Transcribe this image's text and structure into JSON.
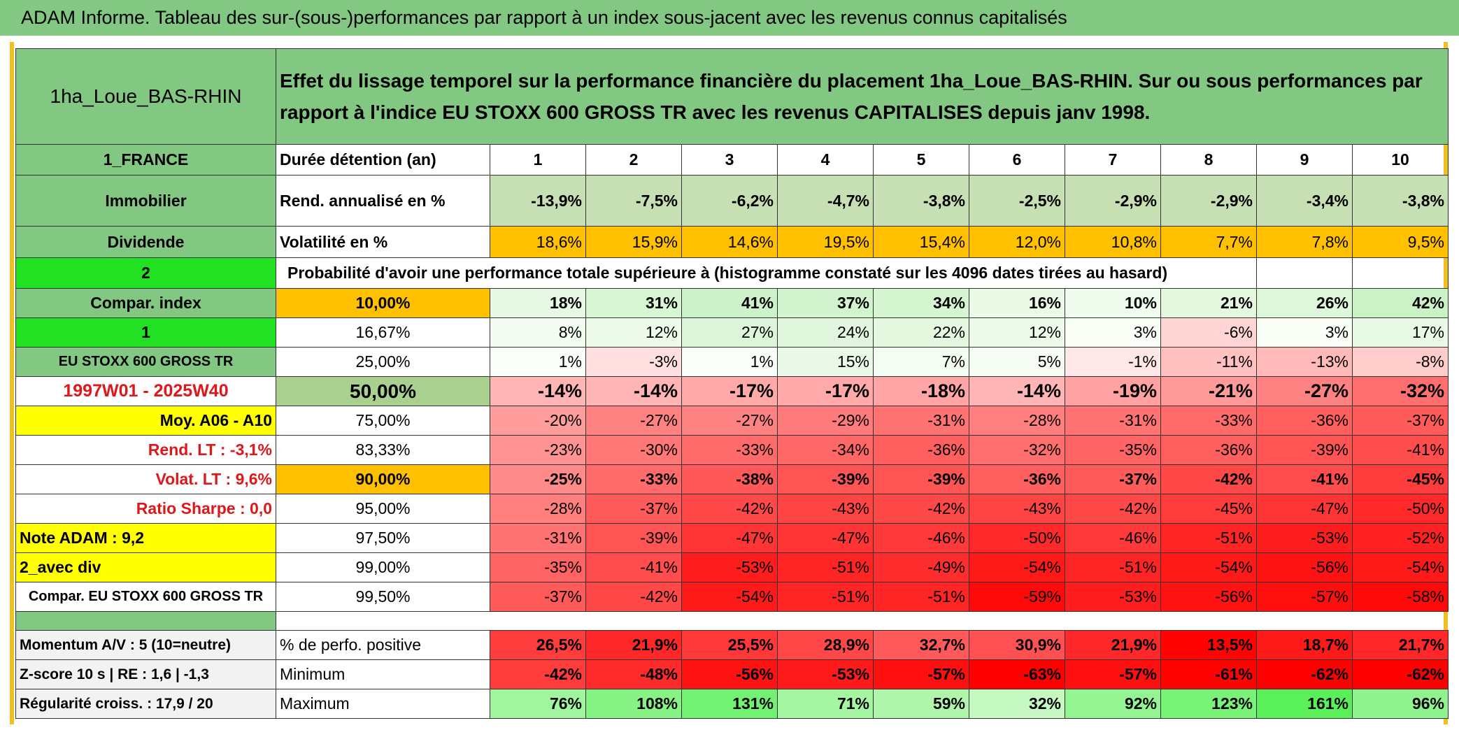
{
  "title": "ADAM Informe. Tableau des sur-(sous-)performances par rapport à un index sous-jacent avec les revenus connus capitalisés",
  "header": {
    "label": "1ha_Loue_BAS-RHIN",
    "description": "Effet du lissage temporel sur la performance financière du placement 1ha_Loue_BAS-RHIN. Sur ou sous performances par rapport à l'indice EU STOXX 600 GROSS TR avec les revenus CAPITALISES depuis janv 1998."
  },
  "rows": [
    {
      "side": "1_FRANCE",
      "label": "Durée détention (an)",
      "cells": [
        "1",
        "2",
        "3",
        "4",
        "5",
        "6",
        "7",
        "8",
        "9",
        "10"
      ]
    },
    {
      "side": "Immobilier",
      "label": "Rend. annualisé en %",
      "cells": [
        "-13,9%",
        "-7,5%",
        "-6,2%",
        "-4,7%",
        "-3,8%",
        "-2,5%",
        "-2,9%",
        "-2,9%",
        "-3,4%",
        "-3,8%"
      ]
    },
    {
      "side": "Dividende",
      "label": "Volatilité en %",
      "cells": [
        "18,6%",
        "15,9%",
        "14,6%",
        "19,5%",
        "15,4%",
        "12,0%",
        "10,8%",
        "7,7%",
        "7,8%",
        "9,5%"
      ]
    },
    {
      "side": "2",
      "label": "Probabilité d'avoir une performance totale supérieure à (histogramme constaté sur les 4096 dates tirées au hasard)",
      "cells": []
    },
    {
      "side": "Compar. index",
      "label": "10,00%",
      "cells": [
        "18%",
        "31%",
        "41%",
        "37%",
        "34%",
        "16%",
        "10%",
        "21%",
        "26%",
        "42%"
      ]
    },
    {
      "side": "1",
      "label": "16,67%",
      "cells": [
        "8%",
        "12%",
        "27%",
        "24%",
        "22%",
        "12%",
        "3%",
        "-6%",
        "3%",
        "17%"
      ]
    },
    {
      "side": "EU STOXX 600 GROSS TR",
      "label": "25,00%",
      "cells": [
        "1%",
        "-3%",
        "1%",
        "15%",
        "7%",
        "5%",
        "-1%",
        "-11%",
        "-13%",
        "-8%"
      ]
    },
    {
      "side": "1997W01 - 2025W40",
      "label": "50,00%",
      "cells": [
        "-14%",
        "-14%",
        "-17%",
        "-17%",
        "-18%",
        "-14%",
        "-19%",
        "-21%",
        "-27%",
        "-32%"
      ]
    },
    {
      "side": "Moy. A06 - A10",
      "label": "75,00%",
      "cells": [
        "-20%",
        "-27%",
        "-27%",
        "-29%",
        "-31%",
        "-28%",
        "-31%",
        "-33%",
        "-36%",
        "-37%"
      ]
    },
    {
      "side": "Rend. LT :   -3,1%",
      "label": "83,33%",
      "cells": [
        "-23%",
        "-30%",
        "-33%",
        "-34%",
        "-36%",
        "-32%",
        "-35%",
        "-36%",
        "-39%",
        "-41%"
      ]
    },
    {
      "side": "Volat. LT :   9,6%",
      "label": "90,00%",
      "cells": [
        "-25%",
        "-33%",
        "-38%",
        "-39%",
        "-39%",
        "-36%",
        "-37%",
        "-42%",
        "-41%",
        "-45%"
      ]
    },
    {
      "side": "Ratio Sharpe :    0,0",
      "label": "95,00%",
      "cells": [
        "-28%",
        "-37%",
        "-42%",
        "-43%",
        "-42%",
        "-43%",
        "-42%",
        "-45%",
        "-47%",
        "-50%"
      ]
    },
    {
      "side": "Note ADAM : 9,2",
      "label": "97,50%",
      "cells": [
        "-31%",
        "-39%",
        "-47%",
        "-47%",
        "-46%",
        "-50%",
        "-46%",
        "-51%",
        "-53%",
        "-52%"
      ]
    },
    {
      "side": "2_avec div",
      "label": "99,00%",
      "cells": [
        "-35%",
        "-41%",
        "-53%",
        "-51%",
        "-49%",
        "-54%",
        "-51%",
        "-54%",
        "-56%",
        "-54%"
      ]
    },
    {
      "side": "Compar. EU STOXX 600 GROSS TR",
      "label": "99,50%",
      "cells": [
        "-37%",
        "-42%",
        "-54%",
        "-51%",
        "-51%",
        "-59%",
        "-53%",
        "-56%",
        "-57%",
        "-58%"
      ]
    },
    {
      "side": "Momentum A/V : 5 (10=neutre)",
      "label": "% de perfo. positive",
      "cells": [
        "26,5%",
        "21,9%",
        "25,5%",
        "28,9%",
        "32,7%",
        "30,9%",
        "21,9%",
        "13,5%",
        "18,7%",
        "21,7%"
      ]
    },
    {
      "side": "Z-score 10 s | RE : 1,6 | -1,3",
      "label": "Minimum",
      "cells": [
        "-42%",
        "-48%",
        "-56%",
        "-53%",
        "-57%",
        "-63%",
        "-57%",
        "-61%",
        "-62%",
        "-62%"
      ]
    },
    {
      "side": "Régularité croiss. : 17,9 / 20",
      "label": "Maximum",
      "cells": [
        "76%",
        "108%",
        "131%",
        "71%",
        "59%",
        "32%",
        "92%",
        "123%",
        "161%",
        "96%"
      ]
    }
  ]
}
